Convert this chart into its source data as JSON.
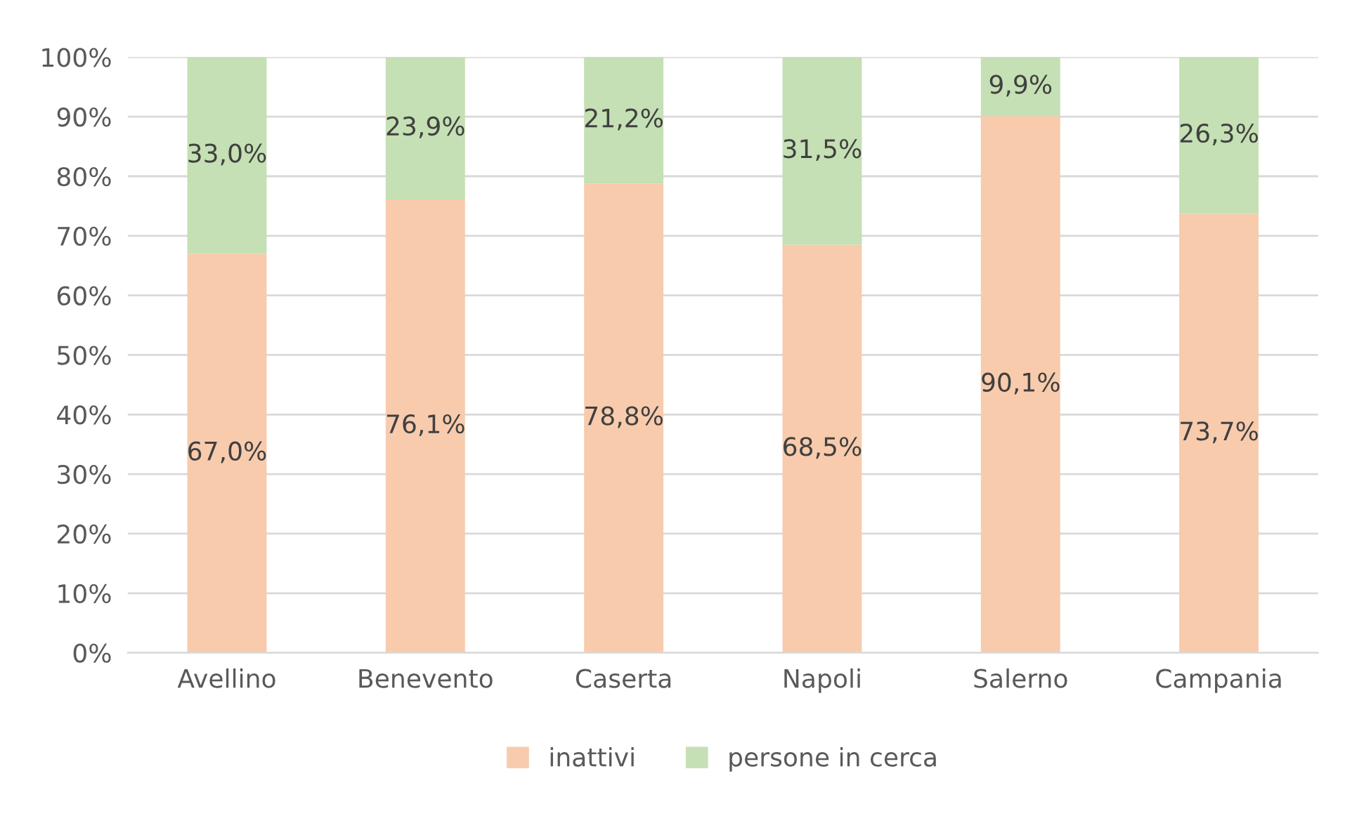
{
  "chart_data": {
    "type": "bar",
    "stacked": true,
    "categories": [
      "Avellino",
      "Benevento",
      "Caserta",
      "Napoli",
      "Salerno",
      "Campania"
    ],
    "series": [
      {
        "name": "inattivi",
        "color": "#f8cbad",
        "values": [
          67.0,
          76.1,
          78.8,
          68.5,
          90.1,
          73.7
        ],
        "value_labels": [
          "67,0%",
          "76,1%",
          "78,8%",
          "68,5%",
          "90,1%",
          "73,7%"
        ]
      },
      {
        "name": "persone in cerca",
        "color": "#c5e0b4",
        "values": [
          33.0,
          23.9,
          21.2,
          31.5,
          9.9,
          26.3
        ],
        "value_labels": [
          "33,0%",
          "23,9%",
          "21,2%",
          "31,5%",
          "9,9%",
          "26,3%"
        ]
      }
    ],
    "ylim": [
      0,
      100
    ],
    "yticks": [
      {
        "value": 0,
        "label": "0%"
      },
      {
        "value": 10,
        "label": "10%"
      },
      {
        "value": 20,
        "label": "20%"
      },
      {
        "value": 30,
        "label": "30%"
      },
      {
        "value": 40,
        "label": "40%"
      },
      {
        "value": 50,
        "label": "50%"
      },
      {
        "value": 60,
        "label": "60%"
      },
      {
        "value": 70,
        "label": "70%"
      },
      {
        "value": 80,
        "label": "80%"
      },
      {
        "value": 90,
        "label": "90%"
      },
      {
        "value": 100,
        "label": "100%"
      }
    ],
    "grid": "y",
    "legend": "bottom"
  }
}
